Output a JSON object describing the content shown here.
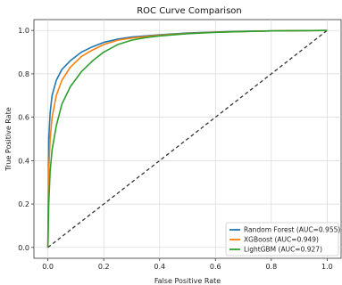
{
  "chart_data": {
    "type": "line",
    "title": "ROC Curve Comparison",
    "xlabel": "False Positive Rate",
    "ylabel": "True Positive Rate",
    "xlim": [
      -0.05,
      1.05
    ],
    "ylim": [
      -0.05,
      1.05
    ],
    "xticks": [
      "0.0",
      "0.2",
      "0.4",
      "0.6",
      "0.8",
      "1.0"
    ],
    "yticks": [
      "0.0",
      "0.2",
      "0.4",
      "0.6",
      "0.8",
      "1.0"
    ],
    "grid": true,
    "legend_position": "bottom-right",
    "series": [
      {
        "name": "Random Forest (AUC=0.955)",
        "color": "#1f77b4",
        "x": [
          0,
          0.003,
          0.008,
          0.015,
          0.03,
          0.05,
          0.08,
          0.12,
          0.16,
          0.2,
          0.25,
          0.3,
          0.35,
          0.4,
          0.5,
          0.6,
          0.7,
          0.8,
          0.9,
          1.0
        ],
        "y": [
          0,
          0.5,
          0.62,
          0.7,
          0.77,
          0.82,
          0.86,
          0.9,
          0.925,
          0.945,
          0.96,
          0.97,
          0.975,
          0.98,
          0.988,
          0.993,
          0.996,
          0.998,
          0.999,
          1.0
        ]
      },
      {
        "name": "XGBoost (AUC=0.949)",
        "color": "#ff7f0e",
        "x": [
          0,
          0.003,
          0.008,
          0.015,
          0.03,
          0.05,
          0.08,
          0.12,
          0.16,
          0.2,
          0.25,
          0.3,
          0.35,
          0.4,
          0.5,
          0.6,
          0.7,
          0.8,
          0.9,
          1.0
        ],
        "y": [
          0,
          0.35,
          0.5,
          0.6,
          0.7,
          0.77,
          0.83,
          0.88,
          0.91,
          0.935,
          0.955,
          0.965,
          0.972,
          0.978,
          0.986,
          0.992,
          0.995,
          0.998,
          0.999,
          1.0
        ]
      },
      {
        "name": "LightGBM (AUC=0.927)",
        "color": "#2ca02c",
        "x": [
          0,
          0.003,
          0.008,
          0.015,
          0.03,
          0.05,
          0.08,
          0.12,
          0.16,
          0.2,
          0.25,
          0.3,
          0.35,
          0.4,
          0.5,
          0.6,
          0.7,
          0.8,
          0.9,
          1.0
        ],
        "y": [
          0,
          0.2,
          0.35,
          0.45,
          0.56,
          0.66,
          0.74,
          0.81,
          0.86,
          0.9,
          0.935,
          0.955,
          0.967,
          0.975,
          0.985,
          0.991,
          0.995,
          0.998,
          0.999,
          1.0
        ]
      }
    ],
    "reference_line": {
      "x": [
        0,
        1
      ],
      "y": [
        0,
        1
      ],
      "color": "#333333",
      "style": "dashed"
    }
  }
}
